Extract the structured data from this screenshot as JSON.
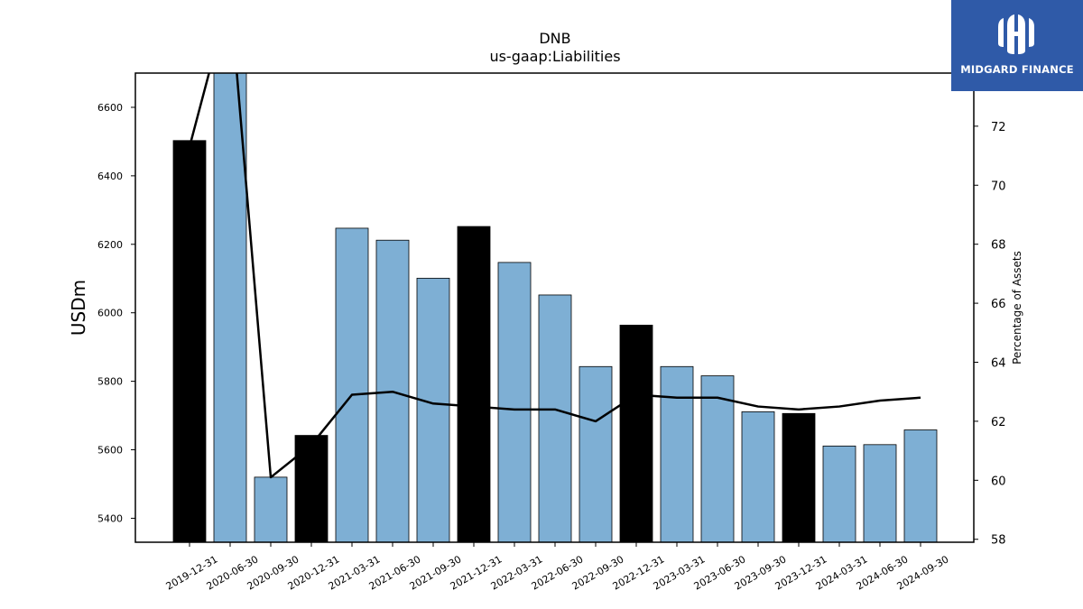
{
  "chart_data": {
    "type": "bar",
    "title": "DNB",
    "subtitle": "us-gaap:Liabilities",
    "ylabel": "USDm",
    "y2label": "Percentage of Assets",
    "categories": [
      "2019-12-31",
      "2020-06-30",
      "2020-09-30",
      "2020-12-31",
      "2021-03-31",
      "2021-06-30",
      "2021-09-30",
      "2021-12-31",
      "2022-03-31",
      "2022-06-30",
      "2022-09-30",
      "2022-12-31",
      "2023-03-31",
      "2023-06-30",
      "2023-09-30",
      "2023-12-31",
      "2024-03-31",
      "2024-06-30",
      "2024-09-30"
    ],
    "series": [
      {
        "type": "bar",
        "axis": "left",
        "values": [
          6503,
          6710,
          5520,
          5642,
          6247,
          6212,
          6101,
          6252,
          6147,
          6052,
          5843,
          5964,
          5843,
          5816,
          5711,
          5706,
          5611,
          5615,
          5658
        ],
        "colors": [
          "#000000",
          "#7eafd4",
          "#7eafd4",
          "#000000",
          "#7eafd4",
          "#7eafd4",
          "#7eafd4",
          "#000000",
          "#7eafd4",
          "#7eafd4",
          "#7eafd4",
          "#000000",
          "#7eafd4",
          "#7eafd4",
          "#7eafd4",
          "#000000",
          "#7eafd4",
          "#7eafd4",
          "#7eafd4"
        ]
      },
      {
        "type": "line",
        "axis": "right",
        "color": "#000000",
        "values": [
          71.3,
          76.5,
          60.1,
          61.2,
          62.9,
          63.0,
          62.6,
          62.5,
          62.4,
          62.4,
          62.0,
          62.9,
          62.8,
          62.8,
          62.5,
          62.4,
          62.5,
          62.7,
          62.8
        ]
      }
    ],
    "ylim": [
      5330,
      6700
    ],
    "y2lim": [
      57.9,
      73.8
    ],
    "yticks": [
      5400,
      5600,
      5800,
      6000,
      6200,
      6400,
      6600
    ],
    "y2ticks": [
      58,
      60,
      62,
      64,
      66,
      68,
      70,
      72
    ],
    "grid": false,
    "legend": "none"
  },
  "logo": {
    "text": "MIDGARD FINANCE",
    "background": "#2f5aa8"
  }
}
